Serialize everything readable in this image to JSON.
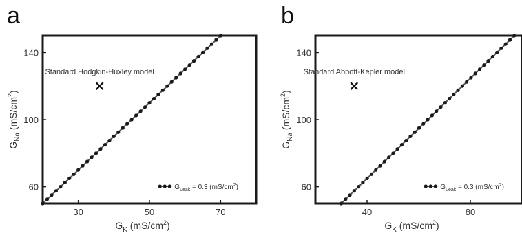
{
  "panels": {
    "a": {
      "letter": "a"
    },
    "b": {
      "letter": "b"
    }
  },
  "chart_data": [
    {
      "type": "line",
      "panel": "a",
      "xlabel_main": "G",
      "xlabel_sub": "K",
      "xlabel_unit": " (mS/cm",
      "xlabel_sup": "2",
      "xlabel_close": ")",
      "ylabel_main": "G",
      "ylabel_sub": "Na",
      "ylabel_unit": " (mS/cm",
      "ylabel_sup": "2",
      "ylabel_close": ")",
      "xlim": [
        20,
        80
      ],
      "ylim": [
        50,
        150
      ],
      "xticks": [
        30,
        50,
        70
      ],
      "yticks": [
        60,
        100,
        140
      ],
      "series": [
        {
          "legend_main": "G",
          "legend_sub": "Leak",
          "legend_rest": " = 0.3 (mS/cm",
          "legend_sup": "2",
          "legend_close": ")",
          "x_start": 20,
          "x_end": 70,
          "y_start": 50,
          "y_end": 150,
          "n_points": 40
        }
      ],
      "marker_point": {
        "x": 36,
        "y": 120,
        "label": "Standard Hodgkin-Huxley model"
      },
      "grid": false,
      "legend_position": "bottom-right",
      "colors": {
        "line": "#555555",
        "dots": "#1a1a1a",
        "frame": "#1a1a1a"
      }
    },
    {
      "type": "line",
      "panel": "b",
      "xlabel_main": "G",
      "xlabel_sub": "K",
      "xlabel_unit": " (mS/cm",
      "xlabel_sup": "2",
      "xlabel_close": ")",
      "ylabel_main": "G",
      "ylabel_sub": "Na",
      "ylabel_unit": " (mS/cm",
      "ylabel_sup": "2",
      "ylabel_close": ")",
      "xlim": [
        20,
        100
      ],
      "ylim": [
        50,
        150
      ],
      "xticks": [
        40,
        80
      ],
      "yticks": [
        60,
        100,
        140
      ],
      "series": [
        {
          "legend_main": "G",
          "legend_sub": "Leak",
          "legend_rest": " = 0.3 (mS/cm",
          "legend_sup": "2",
          "legend_close": ")",
          "x_start": 30,
          "x_end": 97,
          "y_start": 50,
          "y_end": 150,
          "n_points": 40
        }
      ],
      "marker_point": {
        "x": 35,
        "y": 120,
        "label": "Standard Abbott-Kepler model"
      },
      "grid": false,
      "legend_position": "bottom-right",
      "colors": {
        "line": "#555555",
        "dots": "#1a1a1a",
        "frame": "#1a1a1a"
      }
    }
  ]
}
